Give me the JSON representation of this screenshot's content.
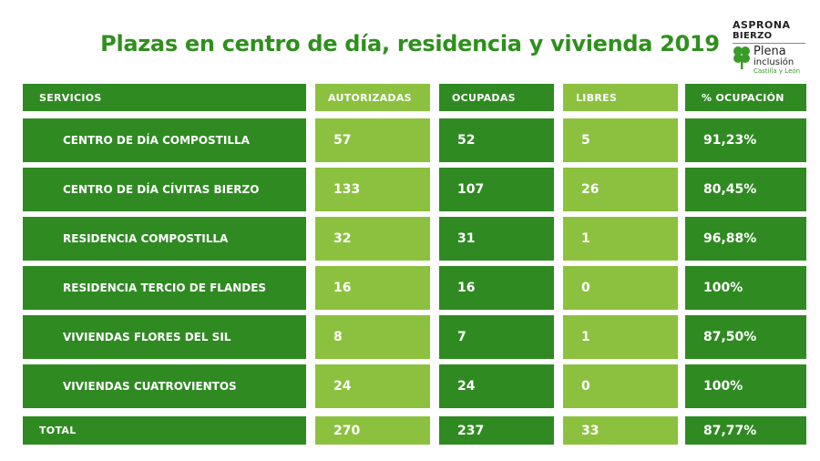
{
  "title": "Plazas en centro de día, residencia y vivienda 2019",
  "logo": {
    "line1": "ASPRONA",
    "line2": "BIERZO",
    "word1": "Plena",
    "word2": "inclusión",
    "word3": "Castilla y León",
    "clover_color": "#3a9a2a"
  },
  "colors": {
    "dark_green": "#2f8a22",
    "light_green": "#8cc13f",
    "title_green": "#2f8f1e"
  },
  "table": {
    "headers": [
      "SERVICIOS",
      "AUTORIZADAS",
      "OCUPADAS",
      "LIBRES",
      "% OCUPACIÓN"
    ],
    "rows": [
      [
        "CENTRO DE DÍA COMPOSTILLA",
        "57",
        "52",
        "5",
        "91,23%"
      ],
      [
        "CENTRO DE DÍA CÍVITAS BIERZO",
        "133",
        "107",
        "26",
        "80,45%"
      ],
      [
        "RESIDENCIA COMPOSTILLA",
        "32",
        "31",
        "1",
        "96,88%"
      ],
      [
        "RESIDENCIA TERCIO DE FLANDES",
        "16",
        "16",
        "0",
        "100%"
      ],
      [
        "VIVIENDAS FLORES DEL SIL",
        "8",
        "7",
        "1",
        "87,50%"
      ],
      [
        "VIVIENDAS CUATROVIENTOS",
        "24",
        "24",
        "0",
        "100%"
      ]
    ],
    "total": [
      "TOTAL",
      "270",
      "237",
      "33",
      "87,77%"
    ]
  }
}
